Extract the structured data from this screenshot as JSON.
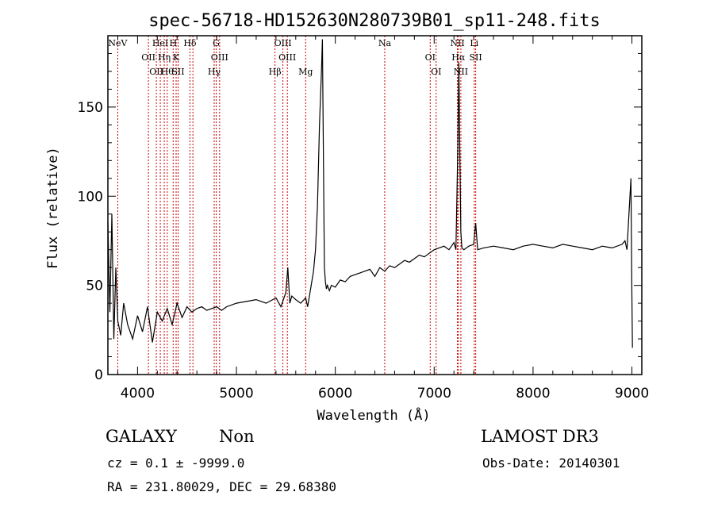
{
  "chart_data": {
    "type": "line",
    "title": "spec-56718-HD152630N280739B01_sp11-248.fits",
    "xlabel": "Wavelength (Å)",
    "ylabel": "Flux (relative)",
    "xlim": [
      3700,
      9100
    ],
    "ylim": [
      0,
      190
    ],
    "grid": false,
    "xticks": [
      4000,
      5000,
      6000,
      7000,
      8000,
      9000
    ],
    "yticks": [
      0,
      50,
      100,
      150
    ],
    "series": [
      {
        "name": "flux",
        "x": [
          3700,
          3720,
          3740,
          3760,
          3780,
          3800,
          3830,
          3860,
          3900,
          3950,
          4000,
          4050,
          4100,
          4150,
          4200,
          4250,
          4300,
          4350,
          4400,
          4450,
          4500,
          4550,
          4600,
          4650,
          4700,
          4750,
          4800,
          4850,
          4900,
          5000,
          5100,
          5200,
          5300,
          5400,
          5450,
          5500,
          5520,
          5540,
          5560,
          5600,
          5650,
          5700,
          5720,
          5750,
          5780,
          5800,
          5820,
          5840,
          5860,
          5870,
          5880,
          5890,
          5900,
          5910,
          5920,
          5940,
          5960,
          6000,
          6050,
          6100,
          6150,
          6200,
          6250,
          6300,
          6350,
          6400,
          6450,
          6500,
          6550,
          6600,
          6650,
          6700,
          6750,
          6800,
          6850,
          6900,
          6950,
          7000,
          7050,
          7100,
          7150,
          7200,
          7220,
          7240,
          7250,
          7260,
          7270,
          7280,
          7300,
          7350,
          7400,
          7420,
          7440,
          7500,
          7600,
          7700,
          7800,
          7900,
          8000,
          8100,
          8200,
          8300,
          8400,
          8500,
          8600,
          8700,
          8800,
          8900,
          8930,
          8950,
          8970,
          8990,
          9000,
          9005
        ],
        "values": [
          85,
          35,
          90,
          20,
          60,
          30,
          22,
          40,
          28,
          20,
          33,
          24,
          38,
          18,
          35,
          30,
          37,
          28,
          40,
          32,
          38,
          35,
          37,
          38,
          36,
          37,
          38,
          36,
          38,
          40,
          41,
          42,
          40,
          43,
          38,
          46,
          60,
          40,
          44,
          42,
          40,
          43,
          38,
          48,
          58,
          70,
          95,
          140,
          170,
          188,
          120,
          60,
          52,
          48,
          50,
          47,
          50,
          49,
          53,
          52,
          55,
          56,
          57,
          58,
          59,
          55,
          60,
          58,
          61,
          60,
          62,
          64,
          63,
          65,
          67,
          66,
          68,
          70,
          71,
          72,
          70,
          74,
          70,
          130,
          175,
          120,
          80,
          71,
          70,
          72,
          73,
          85,
          70,
          71,
          72,
          71,
          70,
          72,
          73,
          72,
          71,
          73,
          72,
          71,
          70,
          72,
          71,
          73,
          75,
          70,
          90,
          110,
          45,
          15
        ]
      }
    ],
    "lines": [
      {
        "wave": 3800,
        "labels": [
          "NeV"
        ]
      },
      {
        "wave": 4110,
        "labels": [
          "OII"
        ]
      },
      {
        "wave": 4190,
        "labels": [
          "OII"
        ]
      },
      {
        "wave": 4230,
        "labels": [
          "HeI"
        ]
      },
      {
        "wave": 4270,
        "labels": [
          "Hη"
        ]
      },
      {
        "wave": 4300,
        "labels": [
          "Hθ"
        ]
      },
      {
        "wave": 4360,
        "labels": [
          "H"
        ]
      },
      {
        "wave": 4390,
        "labels": [
          "K"
        ]
      },
      {
        "wave": 4410,
        "labels": [
          "SII"
        ]
      },
      {
        "wave": 4530,
        "labels": [
          "Hδ"
        ]
      },
      {
        "wave": 4560,
        "labels": []
      },
      {
        "wave": 4775,
        "labels": [
          "Hγ"
        ]
      },
      {
        "wave": 4795,
        "labels": [
          "G"
        ]
      },
      {
        "wave": 4830,
        "labels": [
          "OIII"
        ]
      },
      {
        "wave": 5390,
        "labels": [
          "Hβ"
        ]
      },
      {
        "wave": 5470,
        "labels": [
          "OIII"
        ]
      },
      {
        "wave": 5515,
        "labels": [
          "OIII"
        ]
      },
      {
        "wave": 5700,
        "labels": [
          "Mg"
        ]
      },
      {
        "wave": 6500,
        "labels": [
          "Na"
        ]
      },
      {
        "wave": 6960,
        "labels": [
          "OI"
        ]
      },
      {
        "wave": 7020,
        "labels": [
          "OI"
        ]
      },
      {
        "wave": 7235,
        "labels": [
          "NII"
        ]
      },
      {
        "wave": 7245,
        "labels": [
          "Hα"
        ]
      },
      {
        "wave": 7270,
        "labels": [
          "NII"
        ]
      },
      {
        "wave": 7405,
        "labels": [
          "Li"
        ]
      },
      {
        "wave": 7420,
        "labels": [
          "SII"
        ]
      }
    ]
  },
  "info": {
    "class_label": "GALAXY",
    "subclass_label": "Non",
    "survey_label": "LAMOST DR3",
    "cz_line": "cz = 0.1 ± -9999.0",
    "obs_date_line": "Obs-Date: 20140301",
    "coords_line": "RA = 231.80029, DEC =  29.68380"
  },
  "colors": {
    "spectrum": "#000000",
    "line_markers": "#cc0000"
  }
}
